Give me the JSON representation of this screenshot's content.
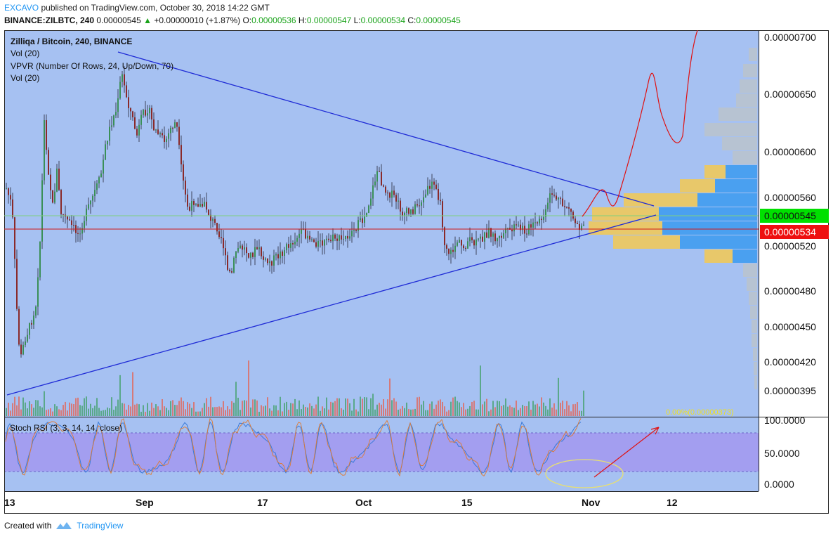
{
  "header": {
    "author": "EXCAVO",
    "published": "published on TradingView.com, October 30, 2018 14:22 GMT",
    "symbol": "BINANCE:ZILBTC, 240",
    "last": "0.00000545",
    "change_arrow": "▲",
    "change": "+0.00000010 (+1.87%)",
    "o_label": "O:",
    "o_value": "0.00000536",
    "h_label": "H:",
    "h_value": "0.00000547",
    "l_label": "L:",
    "l_value": "0.00000534",
    "c_label": "C:",
    "c_value": "0.00000545"
  },
  "legend": {
    "title": "Zilliqa / Bitcoin, 240, BINANCE",
    "vol1": "Vol (20)",
    "vpvr": "VPVR (Number Of Rows, 24, Up/Down, 70)",
    "vol2": "Vol (20)"
  },
  "price_axis": {
    "labels": [
      "0.00000700",
      "0.00000650",
      "0.00000600",
      "0.00000560",
      "0.00000520",
      "0.00000480",
      "0.00000450",
      "0.00000420",
      "0.00000395"
    ],
    "current_price": "0.00000545",
    "red_line_price": "0.00000534",
    "low_marker": "0.00%(0.00000373)"
  },
  "time_axis": {
    "labels": [
      "13",
      "Sep",
      "17",
      "Oct",
      "15",
      "Nov",
      "12"
    ]
  },
  "stoch": {
    "title": "Stoch RSI (3, 3, 14, 14, close)",
    "labels": [
      "100.0000",
      "50.0000",
      "0.0000"
    ]
  },
  "footer": {
    "created_with": "Created with",
    "brand": "TradingView"
  },
  "colors": {
    "chart_bg": "#a6c1f2",
    "stoch_band": "#a39ef0",
    "bull": "#3a8f57",
    "bear": "#8a2a2a",
    "trendline": "#1f2bd6",
    "forecast": "#e01010",
    "current_label": "#00e000",
    "red_label": "#ee1010",
    "vpvr_up": "#4aa0f0",
    "vpvr_down": "#e8c86a"
  }
}
